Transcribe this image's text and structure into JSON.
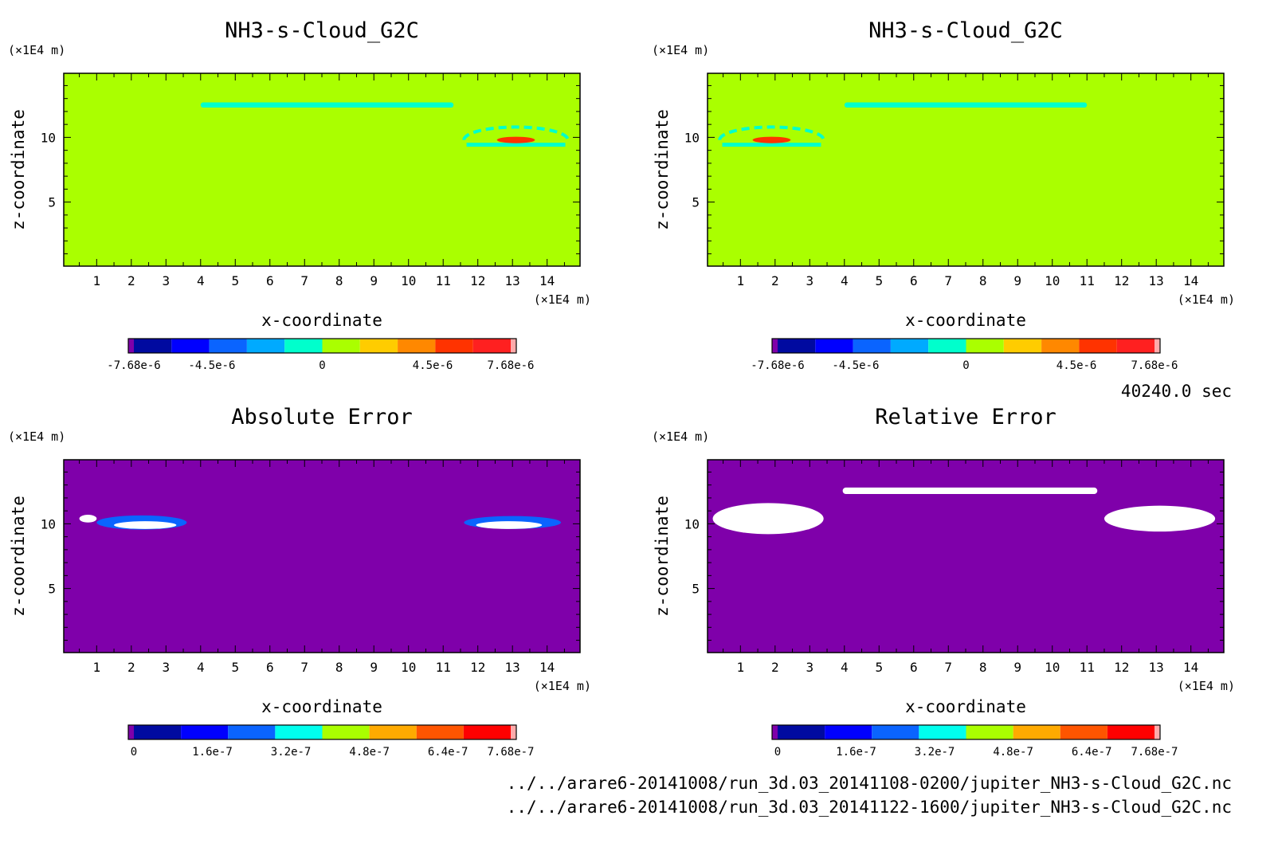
{
  "chart_data": [
    {
      "type": "heatmap",
      "title": "NH3-s-Cloud_G2C",
      "xlabel": "x-coordinate",
      "ylabel": "z-coordinate",
      "x_unit": "(×1E4 m)",
      "y_unit": "(×1E4 m)",
      "xlim": [
        0.05,
        14.95
      ],
      "ylim": [
        0.05,
        14.95
      ],
      "x_ticks": [
        1,
        2,
        3,
        4,
        5,
        6,
        7,
        8,
        9,
        10,
        11,
        12,
        13,
        14
      ],
      "y_ticks": [
        5,
        10
      ],
      "background_color": "#aaff00",
      "colorbar": {
        "colors": [
          "#7f00aa",
          "#000aa0",
          "#0000ff",
          "#0a64ff",
          "#00aaff",
          "#00ffcc",
          "#aaff00",
          "#ffcc00",
          "#ff8800",
          "#ff3300",
          "#ff2020",
          "#ffaaaa"
        ],
        "tick_values": [
          -7.68e-06,
          -4.5e-06,
          0,
          4.5e-06,
          7.68e-06
        ],
        "tick_labels": [
          "-7.68e-6",
          "-4.5e-6",
          "0",
          "4.5e-6",
          "7.68e-6"
        ],
        "vmin": -7.68e-06,
        "vmax": 7.68e-06
      },
      "features": [
        {
          "kind": "band",
          "x": [
            4.0,
            11.3
          ],
          "z": [
            12.3,
            12.7
          ],
          "color": "#00ffcc"
        },
        {
          "kind": "arc",
          "cx": 13.1,
          "cz": 9.8,
          "rx": 1.5,
          "rz": 1.0,
          "color": "#00ffcc"
        },
        {
          "kind": "blob",
          "cx": 13.1,
          "cz": 9.8,
          "rx": 0.55,
          "rz": 0.25,
          "color": "#ff3300"
        }
      ]
    },
    {
      "type": "heatmap",
      "title": "NH3-s-Cloud_G2C",
      "xlabel": "x-coordinate",
      "ylabel": "z-coordinate",
      "x_unit": "(×1E4 m)",
      "y_unit": "(×1E4 m)",
      "xlim": [
        0.05,
        14.95
      ],
      "ylim": [
        0.05,
        14.95
      ],
      "x_ticks": [
        1,
        2,
        3,
        4,
        5,
        6,
        7,
        8,
        9,
        10,
        11,
        12,
        13,
        14
      ],
      "y_ticks": [
        5,
        10
      ],
      "background_color": "#aaff00",
      "colorbar": {
        "colors": [
          "#7f00aa",
          "#000aa0",
          "#0000ff",
          "#0a64ff",
          "#00aaff",
          "#00ffcc",
          "#aaff00",
          "#ffcc00",
          "#ff8800",
          "#ff3300",
          "#ff2020",
          "#ffaaaa"
        ],
        "tick_values": [
          -7.68e-06,
          -4.5e-06,
          0,
          4.5e-06,
          7.68e-06
        ],
        "tick_labels": [
          "-7.68e-6",
          "-4.5e-6",
          "0",
          "4.5e-6",
          "7.68e-6"
        ],
        "vmin": -7.68e-06,
        "vmax": 7.68e-06
      },
      "features": [
        {
          "kind": "band",
          "x": [
            4.0,
            11.0
          ],
          "z": [
            12.3,
            12.7
          ],
          "color": "#00ffcc"
        },
        {
          "kind": "arc",
          "cx": 1.9,
          "cz": 9.8,
          "rx": 1.5,
          "rz": 1.0,
          "color": "#00ffcc"
        },
        {
          "kind": "blob",
          "cx": 1.9,
          "cz": 9.8,
          "rx": 0.55,
          "rz": 0.25,
          "color": "#ff3300"
        }
      ]
    },
    {
      "type": "heatmap",
      "title": "Absolute Error",
      "xlabel": "x-coordinate",
      "ylabel": "z-coordinate",
      "x_unit": "(×1E4 m)",
      "y_unit": "(×1E4 m)",
      "xlim": [
        0.05,
        14.95
      ],
      "ylim": [
        0.05,
        14.95
      ],
      "x_ticks": [
        1,
        2,
        3,
        4,
        5,
        6,
        7,
        8,
        9,
        10,
        11,
        12,
        13,
        14
      ],
      "y_ticks": [
        5,
        10
      ],
      "background_color": "#7f00aa",
      "colorbar": {
        "colors": [
          "#7f00aa",
          "#000aa0",
          "#0000ff",
          "#0a64ff",
          "#00ffee",
          "#aaff00",
          "#ffaa00",
          "#ff5500",
          "#ff0000",
          "#ffaaaa"
        ],
        "tick_values": [
          0,
          1.6e-07,
          3.2e-07,
          4.8e-07,
          6.4e-07,
          7.68e-07
        ],
        "tick_labels": [
          "0",
          "1.6e-7",
          "3.2e-7",
          "4.8e-7",
          "6.4e-7",
          "7.68e-7"
        ],
        "vmin": 0,
        "vmax": 7.68e-07
      },
      "features": [
        {
          "kind": "blob",
          "cx": 2.3,
          "cz": 10.1,
          "rx": 1.3,
          "rz": 0.55,
          "color": "#0a64ff"
        },
        {
          "kind": "blob",
          "cx": 2.4,
          "cz": 9.9,
          "rx": 0.9,
          "rz": 0.3,
          "color": "#ffffff"
        },
        {
          "kind": "blob",
          "cx": 0.75,
          "cz": 10.4,
          "rx": 0.25,
          "rz": 0.3,
          "color": "#ffffff"
        },
        {
          "kind": "blob",
          "cx": 13.0,
          "cz": 10.1,
          "rx": 1.4,
          "rz": 0.5,
          "color": "#0a64ff"
        },
        {
          "kind": "blob",
          "cx": 12.9,
          "cz": 9.9,
          "rx": 0.95,
          "rz": 0.3,
          "color": "#ffffff"
        }
      ]
    },
    {
      "type": "heatmap",
      "title": "Relative Error",
      "xlabel": "x-coordinate",
      "ylabel": "z-coordinate",
      "x_unit": "(×1E4 m)",
      "y_unit": "(×1E4 m)",
      "xlim": [
        0.05,
        14.95
      ],
      "ylim": [
        0.05,
        14.95
      ],
      "x_ticks": [
        1,
        2,
        3,
        4,
        5,
        6,
        7,
        8,
        9,
        10,
        11,
        12,
        13,
        14
      ],
      "y_ticks": [
        5,
        10
      ],
      "background_color": "#7f00aa",
      "colorbar": {
        "colors": [
          "#7f00aa",
          "#000aa0",
          "#0000ff",
          "#0a64ff",
          "#00ffee",
          "#aaff00",
          "#ffaa00",
          "#ff5500",
          "#ff0000",
          "#ffaaaa"
        ],
        "tick_values": [
          0,
          1.6e-07,
          3.2e-07,
          4.8e-07,
          6.4e-07,
          7.68e-07
        ],
        "tick_labels": [
          "0",
          "1.6e-7",
          "3.2e-7",
          "4.8e-7",
          "6.4e-7",
          "7.68e-7"
        ],
        "vmin": 0,
        "vmax": 7.68e-07
      },
      "features": [
        {
          "kind": "band",
          "x": [
            3.95,
            11.3
          ],
          "z": [
            12.3,
            12.8
          ],
          "color": "#ffffff"
        },
        {
          "kind": "blob",
          "cx": 1.8,
          "cz": 10.4,
          "rx": 1.6,
          "rz": 1.2,
          "color": "#ffffff"
        },
        {
          "kind": "blob",
          "cx": 13.1,
          "cz": 10.4,
          "rx": 1.6,
          "rz": 1.0,
          "color": "#ffffff"
        }
      ]
    }
  ],
  "info": {
    "time_label": "40240.0 sec",
    "file_paths": [
      "../../arare6-20141008/run_3d.03_20141108-0200/jupiter_NH3-s-Cloud_G2C.nc",
      "../../arare6-20141008/run_3d.03_20141122-1600/jupiter_NH3-s-Cloud_G2C.nc"
    ]
  }
}
